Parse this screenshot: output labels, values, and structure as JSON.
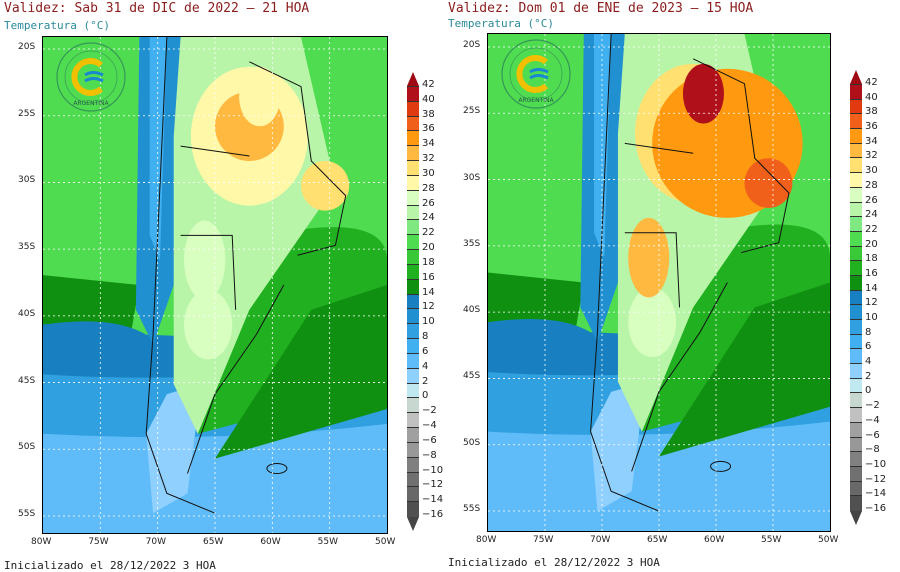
{
  "panels": [
    {
      "title": "Validez: Sab 31 de DIC de 2022 — 21 HOA",
      "subtitle": "Temperatura (°C)",
      "footer": "Inicializado el 28/12/2022 3 HOA",
      "logo_text": "ARGENTINA"
    },
    {
      "title": "Validez: Dom 01 de ENE de 2023 — 15 HOA",
      "subtitle": "Temperatura (°C)",
      "footer": "Inicializado el 28/12/2022 3 HOA",
      "logo_text": "ARGENTINA"
    }
  ],
  "lat_ticks": [
    "20S",
    "25S",
    "30S",
    "35S",
    "40S",
    "45S",
    "50S",
    "55S"
  ],
  "lon_ticks": [
    "80W",
    "75W",
    "70W",
    "65W",
    "60W",
    "55W",
    "50W"
  ],
  "colorbar": {
    "labels": [
      "42",
      "40",
      "38",
      "36",
      "34",
      "32",
      "30",
      "28",
      "26",
      "24",
      "22",
      "20",
      "18",
      "16",
      "14",
      "12",
      "10",
      "8",
      "6",
      "4",
      "2",
      "0",
      "−2",
      "−4",
      "−6",
      "−8",
      "−10",
      "−12",
      "−14",
      "−16"
    ],
    "colors": [
      "#b0101a",
      "#e03a10",
      "#f0601a",
      "#ff9a10",
      "#ffb840",
      "#ffe070",
      "#fff8a8",
      "#d8ffc0",
      "#b8f5a8",
      "#80e880",
      "#50dc50",
      "#38c838",
      "#20b020",
      "#109010",
      "#1880c0",
      "#2090d0",
      "#30a0e0",
      "#40b0f0",
      "#60bcf8",
      "#90d0ff",
      "#c0e8f0",
      "#c8d8d0",
      "#c0c0c0",
      "#a0a0a0",
      "#989898",
      "#808080",
      "#707070",
      "#686868",
      "#505050"
    ],
    "top_arrow": "#a00a15",
    "bottom_arrow": "#444444"
  }
}
